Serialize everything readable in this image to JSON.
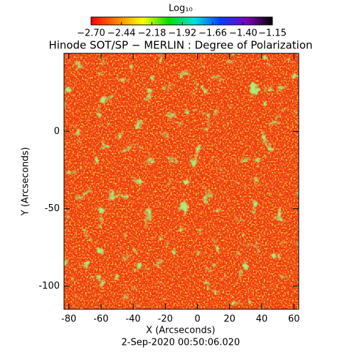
{
  "chart_data": {
    "type": "heatmap",
    "title": "Hinode SOT/SP − MERLIN : Degree of Polarization",
    "x_label": "X (Arcseconds)",
    "y_label": "Y (Arcseconds)",
    "footer": "2-Sep-2020 00:50:06.020",
    "colorbar_label": "Log₁₀",
    "colormap": [
      "#ff0000",
      "#ff8000",
      "#ffff00",
      "#00e000",
      "#00e0e0",
      "#0040ff",
      "#8000c0",
      "#000000"
    ],
    "clim": [
      -2.7,
      -1.15
    ],
    "cticks": [
      {
        "value": -2.7,
        "label": "−2.70"
      },
      {
        "value": -2.44,
        "label": "−2.44"
      },
      {
        "value": -2.18,
        "label": "−2.18"
      },
      {
        "value": -1.92,
        "label": "−1.92"
      },
      {
        "value": -1.66,
        "label": "−1.66"
      },
      {
        "value": -1.4,
        "label": "−1.40"
      },
      {
        "value": -1.15,
        "label": "−1.15"
      }
    ],
    "xlim": [
      -83,
      63
    ],
    "ylim": [
      -115,
      50.5
    ],
    "xticks": [
      -80,
      -60,
      -40,
      -20,
      0,
      20,
      40,
      60
    ],
    "yticks": [
      0,
      -50,
      -100
    ]
  }
}
